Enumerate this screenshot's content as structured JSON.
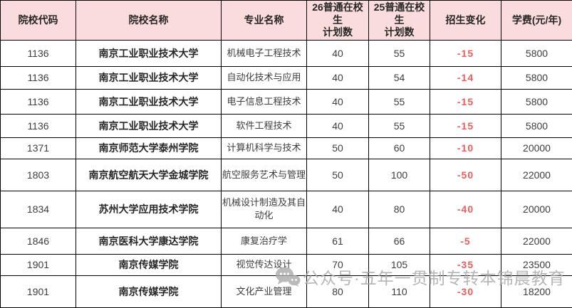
{
  "table": {
    "columns": [
      {
        "label": "院校代码"
      },
      {
        "label": "院校名称"
      },
      {
        "label": "专业名称"
      },
      {
        "label": "26普通在校生\n计划数"
      },
      {
        "label": "25普通在校生\n计划数"
      },
      {
        "label": "招生变化"
      },
      {
        "label": "学费(元/年)"
      }
    ],
    "rows": [
      {
        "code": "1136",
        "name": "南京工业职业技术大学",
        "major": "机械电子工程技术",
        "plan26": "40",
        "plan25": "55",
        "change": "-15",
        "tuition": "5800"
      },
      {
        "code": "1136",
        "name": "南京工业职业技术大学",
        "major": "自动化技术与应用",
        "plan26": "40",
        "plan25": "54",
        "change": "-14",
        "tuition": "5800"
      },
      {
        "code": "1136",
        "name": "南京工业职业技术大学",
        "major": "电子信息工程技术",
        "plan26": "40",
        "plan25": "55",
        "change": "-15",
        "tuition": "5800"
      },
      {
        "code": "1136",
        "name": "南京工业职业技术大学",
        "major": "软件工程技术",
        "plan26": "40",
        "plan25": "55",
        "change": "-15",
        "tuition": "5800"
      },
      {
        "code": "1371",
        "name": "南京师范大学泰州学院",
        "major": "计算机科学与技术",
        "plan26": "50",
        "plan25": "60",
        "change": "-10",
        "tuition": "20000"
      },
      {
        "code": "1803",
        "name": "南京航空航天大学金城学院",
        "major": "航空服务艺术与管理",
        "plan26": "50",
        "plan25": "100",
        "change": "-50",
        "tuition": "22000"
      },
      {
        "code": "1834",
        "name": "苏州大学应用技术学院",
        "major": "机械设计制造及其自动化",
        "plan26": "40",
        "plan25": "80",
        "change": "-40",
        "tuition": "20000"
      },
      {
        "code": "1846",
        "name": "南京医科大学康达学院",
        "major": "康复治疗学",
        "plan26": "61",
        "plan25": "66",
        "change": "-5",
        "tuition": "22000"
      },
      {
        "code": "1901",
        "name": "南京传媒学院",
        "major": "视觉传达设计",
        "plan26": "70",
        "plan25": "105",
        "change": "-35",
        "tuition": "23500"
      },
      {
        "code": "1901",
        "name": "南京传媒学院",
        "major": "文化产业管理",
        "plan26": "80",
        "plan25": "110",
        "change": "-30",
        "tuition": "18200"
      }
    ]
  },
  "watermark": {
    "icon": "wechat-icon",
    "text": "公众号·五年一贯制专转本锦晨教育"
  },
  "colors": {
    "header_bg": "#fbdcdc",
    "negative_change": "#f25c5c",
    "border": "#000000",
    "watermark": "#aaaaaa"
  }
}
